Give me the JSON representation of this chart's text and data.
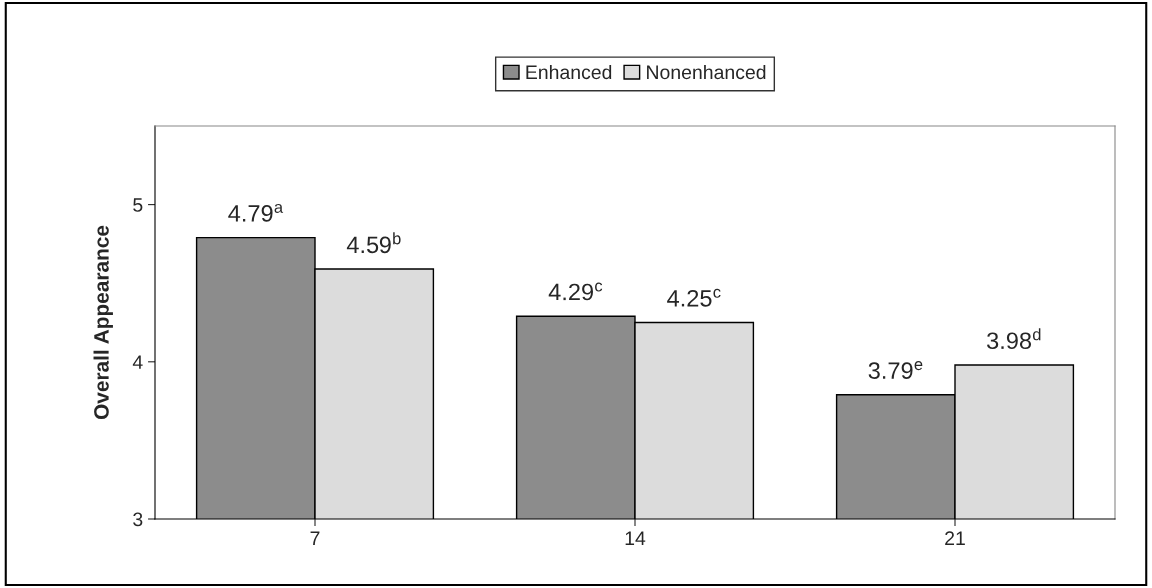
{
  "chart_data": {
    "type": "bar",
    "ylabel": "Overall Appearance",
    "categories": [
      "7",
      "14",
      "21"
    ],
    "series": [
      {
        "name": "Enhanced",
        "color": "#8c8c8c",
        "values": [
          4.79,
          4.29,
          3.79
        ],
        "value_labels": [
          "4.79$^{a}$",
          "4.29$^{c}$",
          "3.79$^{e}$"
        ]
      },
      {
        "name": "Nonenhanced",
        "color": "#dcdcdc",
        "values": [
          4.59,
          4.25,
          3.98
        ],
        "value_labels": [
          "4.59$^{b}$",
          "4.25$^{c}$",
          "3.98$^{d}$"
        ]
      }
    ],
    "ylim": [
      3,
      5.5
    ],
    "yticks": [
      3,
      4,
      5
    ],
    "grid": false,
    "legend": "top"
  }
}
